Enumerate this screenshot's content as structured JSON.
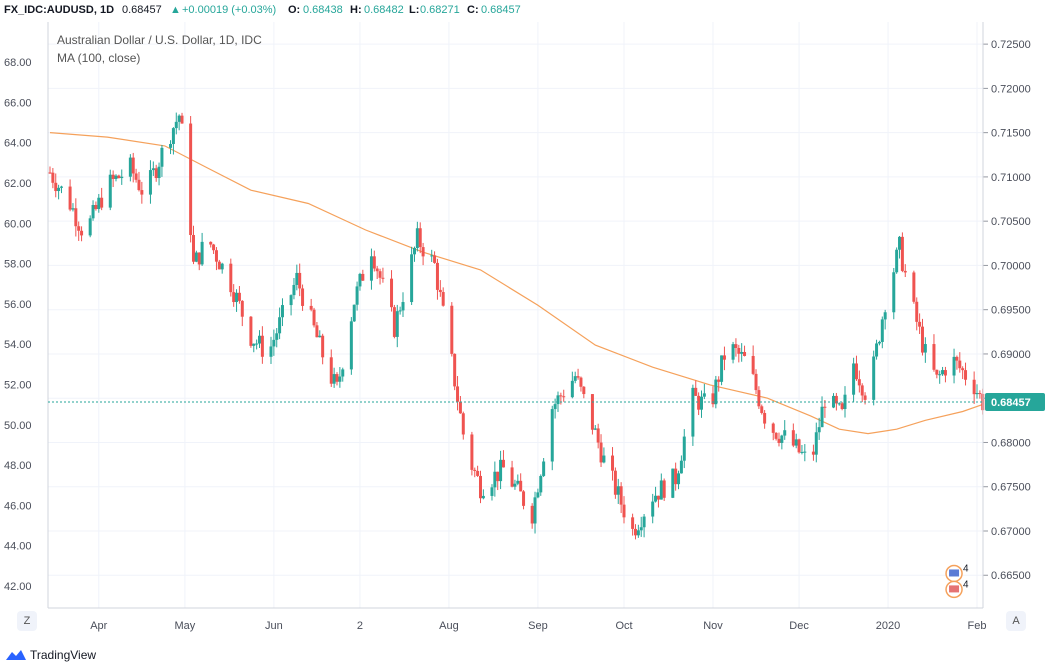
{
  "header": {
    "symbol": "FX_IDC:AUDUSD, 1D",
    "last": "0.68457",
    "change": "+0.00019 (+0.03%)",
    "open_label": "O:",
    "open": "0.68438",
    "high_label": "H:",
    "high": "0.68482",
    "low_label": "L:",
    "low": "0.68271",
    "close_label": "C:",
    "close": "0.68457",
    "up_arrow": "up-triangle-icon"
  },
  "overlay": {
    "title": "Australian Dollar / U.S. Dollar, 1D, IDC",
    "ma_label": "MA (100, close)"
  },
  "footer": {
    "brand": "TradingView",
    "zoom_btn": "Z",
    "auto_btn": "A"
  },
  "colors": {
    "up": "#26a69a",
    "down": "#ef5350",
    "ma": "#f5a15b",
    "price_line": "#26a69a",
    "grid": "#f0f3fa"
  },
  "chart_data": {
    "type": "candlestick",
    "last_price": 0.68457,
    "left_axis": {
      "ticks": [
        "42.00",
        "44.00",
        "46.00",
        "48.00",
        "50.00",
        "52.00",
        "54.00",
        "56.00",
        "58.00",
        "60.00",
        "62.00",
        "64.00",
        "66.00",
        "68.00"
      ]
    },
    "right_axis": {
      "ticks": [
        "0.66500",
        "0.67000",
        "0.67500",
        "0.68000",
        "0.68500",
        "0.69000",
        "0.69500",
        "0.70000",
        "0.70500",
        "0.71000",
        "0.71500",
        "0.72000",
        "0.72500"
      ],
      "range": [
        0.6613,
        0.7275
      ]
    },
    "x_axis": {
      "labels": [
        "Apr",
        "May",
        "Jun",
        "2",
        "Aug",
        "Sep",
        "Oct",
        "Nov",
        "Dec",
        "2020",
        "Feb"
      ],
      "label_day": [
        17,
        47,
        78,
        108,
        139,
        170,
        200,
        231,
        261,
        292,
        323
      ]
    },
    "anchors": [
      {
        "d": 0,
        "p": 0.7105
      },
      {
        "d": 7,
        "p": 0.707
      },
      {
        "d": 12,
        "p": 0.7035
      },
      {
        "d": 20,
        "p": 0.709
      },
      {
        "d": 28,
        "p": 0.711
      },
      {
        "d": 33,
        "p": 0.708
      },
      {
        "d": 42,
        "p": 0.715
      },
      {
        "d": 45,
        "p": 0.717
      },
      {
        "d": 47,
        "p": 0.713
      },
      {
        "d": 50,
        "p": 0.7
      },
      {
        "d": 55,
        "p": 0.703
      },
      {
        "d": 63,
        "p": 0.698
      },
      {
        "d": 70,
        "p": 0.692
      },
      {
        "d": 76,
        "p": 0.69
      },
      {
        "d": 86,
        "p": 0.6985
      },
      {
        "d": 97,
        "p": 0.688
      },
      {
        "d": 100,
        "p": 0.686
      },
      {
        "d": 106,
        "p": 0.696
      },
      {
        "d": 112,
        "p": 0.702
      },
      {
        "d": 120,
        "p": 0.693
      },
      {
        "d": 128,
        "p": 0.703
      },
      {
        "d": 134,
        "p": 0.7
      },
      {
        "d": 140,
        "p": 0.689
      },
      {
        "d": 145,
        "p": 0.679
      },
      {
        "d": 150,
        "p": 0.675
      },
      {
        "d": 158,
        "p": 0.677
      },
      {
        "d": 168,
        "p": 0.672
      },
      {
        "d": 175,
        "p": 0.684
      },
      {
        "d": 183,
        "p": 0.6875
      },
      {
        "d": 188,
        "p": 0.683
      },
      {
        "d": 193,
        "p": 0.678
      },
      {
        "d": 198,
        "p": 0.674
      },
      {
        "d": 203,
        "p": 0.67
      },
      {
        "d": 210,
        "p": 0.674
      },
      {
        "d": 218,
        "p": 0.676
      },
      {
        "d": 224,
        "p": 0.685
      },
      {
        "d": 230,
        "p": 0.684
      },
      {
        "d": 236,
        "p": 0.691
      },
      {
        "d": 243,
        "p": 0.689
      },
      {
        "d": 250,
        "p": 0.682
      },
      {
        "d": 258,
        "p": 0.68
      },
      {
        "d": 265,
        "p": 0.6775
      },
      {
        "d": 270,
        "p": 0.685
      },
      {
        "d": 276,
        "p": 0.683
      },
      {
        "d": 280,
        "p": 0.689
      },
      {
        "d": 285,
        "p": 0.685
      },
      {
        "d": 291,
        "p": 0.696
      },
      {
        "d": 296,
        "p": 0.702
      },
      {
        "d": 300,
        "p": 0.696
      },
      {
        "d": 305,
        "p": 0.69
      },
      {
        "d": 309,
        "p": 0.687
      },
      {
        "d": 314,
        "p": 0.6895
      },
      {
        "d": 318,
        "p": 0.688
      },
      {
        "d": 322,
        "p": 0.6865
      },
      {
        "d": 325,
        "p": 0.6845
      }
    ],
    "ma": [
      {
        "d": 0,
        "p": 0.715
      },
      {
        "d": 20,
        "p": 0.7145
      },
      {
        "d": 40,
        "p": 0.7135
      },
      {
        "d": 55,
        "p": 0.711
      },
      {
        "d": 70,
        "p": 0.7085
      },
      {
        "d": 90,
        "p": 0.707
      },
      {
        "d": 110,
        "p": 0.704
      },
      {
        "d": 130,
        "p": 0.7015
      },
      {
        "d": 150,
        "p": 0.6995
      },
      {
        "d": 170,
        "p": 0.6955
      },
      {
        "d": 190,
        "p": 0.691
      },
      {
        "d": 210,
        "p": 0.6885
      },
      {
        "d": 230,
        "p": 0.6865
      },
      {
        "d": 250,
        "p": 0.685
      },
      {
        "d": 265,
        "p": 0.683
      },
      {
        "d": 275,
        "p": 0.6815
      },
      {
        "d": 285,
        "p": 0.681
      },
      {
        "d": 295,
        "p": 0.6815
      },
      {
        "d": 305,
        "p": 0.6825
      },
      {
        "d": 318,
        "p": 0.6835
      },
      {
        "d": 325,
        "p": 0.6843
      }
    ],
    "markers": [
      {
        "label": "4",
        "d": 315,
        "p": 0.6652
      },
      {
        "label": "4",
        "d": 315,
        "p": 0.6634
      }
    ]
  }
}
